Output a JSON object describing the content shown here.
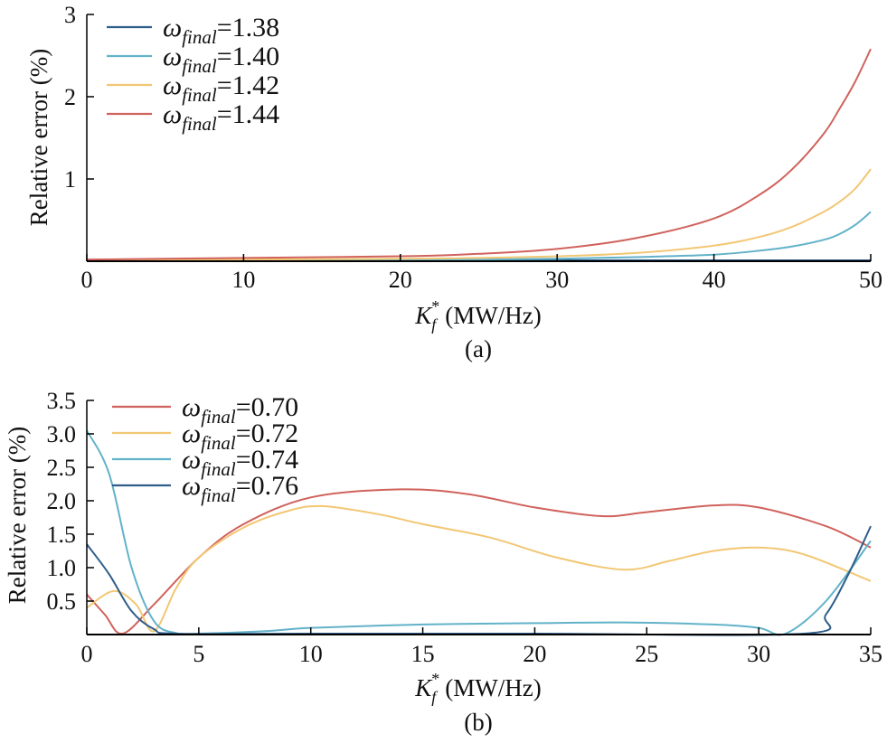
{
  "chart_data": [
    {
      "type": "line",
      "caption": "(a)",
      "xlabel_main": "K",
      "xlabel_sub": "f",
      "xlabel_sup": "*",
      "xlabel_unit": "(MW/Hz)",
      "ylabel": "Relative error (%)",
      "xlim": [
        0,
        50
      ],
      "ylim": [
        0,
        3
      ],
      "xticks": [
        "0",
        "10",
        "20",
        "30",
        "40",
        "50"
      ],
      "xtick_values": [
        0,
        10,
        20,
        30,
        40,
        50
      ],
      "yticks": [
        "1",
        "2",
        "3"
      ],
      "ytick_values": [
        1,
        2,
        3
      ],
      "legend_position": "top-left",
      "series": [
        {
          "name_symbol": "ω",
          "name_sub": "final",
          "name_value": "=1.38",
          "color": "#2f5d8a",
          "x": [
            0,
            10,
            20,
            30,
            40,
            50
          ],
          "y": [
            0.005,
            0.005,
            0.005,
            0.005,
            0.005,
            0.005
          ]
        },
        {
          "name_symbol": "ω",
          "name_sub": "final",
          "name_value": "=1.40",
          "color": "#62b2c9",
          "x": [
            0,
            10,
            20,
            25,
            30,
            35,
            40,
            43,
            45,
            47,
            48,
            49,
            50
          ],
          "y": [
            0.01,
            0.01,
            0.015,
            0.02,
            0.03,
            0.05,
            0.08,
            0.13,
            0.18,
            0.26,
            0.33,
            0.44,
            0.6
          ]
        },
        {
          "name_symbol": "ω",
          "name_sub": "final",
          "name_value": "=1.42",
          "color": "#f2c774",
          "x": [
            0,
            10,
            20,
            25,
            30,
            35,
            40,
            43,
            45,
            47,
            48,
            49,
            50
          ],
          "y": [
            0.01,
            0.02,
            0.03,
            0.04,
            0.06,
            0.1,
            0.19,
            0.3,
            0.42,
            0.6,
            0.72,
            0.88,
            1.12
          ]
        },
        {
          "name_symbol": "ω",
          "name_sub": "final",
          "name_value": "=1.44",
          "color": "#d0625c",
          "x": [
            0,
            10,
            20,
            25,
            30,
            35,
            40,
            43,
            45,
            47,
            48,
            49,
            50
          ],
          "y": [
            0.02,
            0.04,
            0.06,
            0.09,
            0.15,
            0.28,
            0.52,
            0.82,
            1.12,
            1.55,
            1.85,
            2.18,
            2.58
          ]
        }
      ]
    },
    {
      "type": "line",
      "caption": "(b)",
      "xlabel_main": "K",
      "xlabel_sub": "f",
      "xlabel_sup": "*",
      "xlabel_unit": "(MW/Hz)",
      "ylabel": "Relative error (%)",
      "xlim": [
        0,
        35
      ],
      "ylim": [
        0,
        3.5
      ],
      "xticks": [
        "0",
        "5",
        "10",
        "15",
        "20",
        "25",
        "30",
        "35"
      ],
      "xtick_values": [
        0,
        5,
        10,
        15,
        20,
        25,
        30,
        35
      ],
      "yticks": [
        "0.5",
        "1.0",
        "1.5",
        "2.0",
        "2.5",
        "3.0",
        "3.5"
      ],
      "ytick_values": [
        0.5,
        1.0,
        1.5,
        2.0,
        2.5,
        3.0,
        3.5
      ],
      "legend_position": "top-left",
      "series": [
        {
          "name_symbol": "ω",
          "name_sub": "final",
          "name_value": "=0.70",
          "color": "#d0625c",
          "x": [
            0,
            0.8,
            1.6,
            3,
            5,
            7,
            10,
            14,
            17,
            20,
            23,
            25,
            28,
            30,
            33,
            35
          ],
          "y": [
            0.6,
            0.3,
            0.0,
            0.45,
            1.15,
            1.65,
            2.05,
            2.17,
            2.1,
            1.9,
            1.77,
            1.83,
            1.93,
            1.9,
            1.62,
            1.3
          ]
        },
        {
          "name_symbol": "ω",
          "name_sub": "final",
          "name_value": "=0.72",
          "color": "#f2c774",
          "x": [
            0,
            1.2,
            2.2,
            3,
            4,
            5,
            7,
            9,
            10.5,
            13,
            15,
            18,
            21,
            24,
            26,
            28,
            30,
            32,
            35
          ],
          "y": [
            0.4,
            0.65,
            0.45,
            0.05,
            0.7,
            1.15,
            1.6,
            1.85,
            1.92,
            1.8,
            1.65,
            1.45,
            1.15,
            0.97,
            1.1,
            1.25,
            1.3,
            1.2,
            0.8
          ]
        },
        {
          "name_symbol": "ω",
          "name_sub": "final",
          "name_value": "=0.74",
          "color": "#62b2c9",
          "x": [
            0,
            1,
            2,
            3,
            4,
            5,
            8,
            10,
            15,
            20,
            24,
            28,
            30,
            31.2,
            33,
            35
          ],
          "y": [
            3.05,
            2.4,
            1.0,
            0.2,
            0.02,
            0.0,
            0.05,
            0.1,
            0.15,
            0.17,
            0.18,
            0.15,
            0.1,
            0.0,
            0.5,
            1.4
          ]
        },
        {
          "name_symbol": "ω",
          "name_sub": "final",
          "name_value": "=0.76",
          "color": "#2f5d8a",
          "x": [
            0,
            1,
            2,
            3,
            4,
            10,
            20,
            32,
            33,
            34,
            35
          ],
          "y": [
            1.35,
            0.9,
            0.35,
            0.08,
            0.0,
            0.0,
            0.0,
            0.0,
            0.3,
            0.9,
            1.62
          ]
        }
      ]
    }
  ]
}
